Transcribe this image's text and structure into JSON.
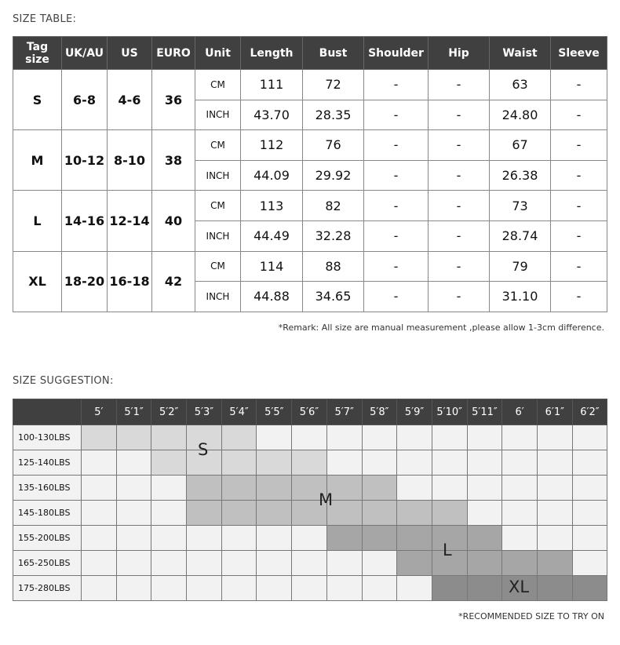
{
  "size_table": {
    "title": "SIZE TABLE:",
    "headers": [
      "Tag size",
      "UK/AU",
      "US",
      "EURO",
      "Unit",
      "Length",
      "Bust",
      "Shoulder",
      "Hip",
      "Waist",
      "Sleeve"
    ],
    "rows": [
      {
        "tag": "S",
        "uk": "6-8",
        "us": "4-6",
        "euro": "36",
        "cm": [
          "CM",
          "111",
          "72",
          "-",
          "-",
          "63",
          "-"
        ],
        "inch": [
          "INCH",
          "43.70",
          "28.35",
          "-",
          "-",
          "24.80",
          "-"
        ]
      },
      {
        "tag": "M",
        "uk": "10-12",
        "us": "8-10",
        "euro": "38",
        "cm": [
          "CM",
          "112",
          "76",
          "-",
          "-",
          "67",
          "-"
        ],
        "inch": [
          "INCH",
          "44.09",
          "29.92",
          "-",
          "-",
          "26.38",
          "-"
        ]
      },
      {
        "tag": "L",
        "uk": "14-16",
        "us": "12-14",
        "euro": "40",
        "cm": [
          "CM",
          "113",
          "82",
          "-",
          "-",
          "73",
          "-"
        ],
        "inch": [
          "INCH",
          "44.49",
          "32.28",
          "-",
          "-",
          "28.74",
          "-"
        ]
      },
      {
        "tag": "XL",
        "uk": "18-20",
        "us": "16-18",
        "euro": "42",
        "cm": [
          "CM",
          "114",
          "88",
          "-",
          "-",
          "79",
          "-"
        ],
        "inch": [
          "INCH",
          "44.88",
          "34.65",
          "-",
          "-",
          "31.10",
          "-"
        ]
      }
    ],
    "remark": "*Remark: All size are manual measurement ,please allow 1-3cm difference."
  },
  "size_suggestion": {
    "title": "SIZE SUGGESTION:",
    "heights": [
      "5′",
      "5′1″",
      "5′2″",
      "5′3″",
      "5′4″",
      "5′5″",
      "5′6″",
      "5′7″",
      "5′8″",
      "5′9″",
      "5′10″",
      "5′11″",
      "6′",
      "6′1″",
      "6′2″"
    ],
    "weights": [
      "100-130LBS",
      "125-140LBS",
      "135-160LBS",
      "145-180LBS",
      "155-200LBS",
      "165-250LBS",
      "175-280LBS"
    ],
    "zones": [
      {
        "size": "S",
        "color": "#d9d9d9",
        "cells": [
          [
            0,
            0,
            4
          ],
          [
            1,
            2,
            6
          ]
        ]
      },
      {
        "size": "M",
        "color": "#c0c0c0",
        "cells": [
          [
            2,
            3,
            8
          ],
          [
            3,
            3,
            10
          ]
        ]
      },
      {
        "size": "L",
        "color": "#a6a6a6",
        "cells": [
          [
            4,
            7,
            11
          ],
          [
            5,
            9,
            13
          ]
        ]
      },
      {
        "size": "XL",
        "color": "#8c8c8c",
        "cells": [
          [
            6,
            10,
            14
          ]
        ]
      }
    ],
    "note": "*RECOMMENDED SIZE TO TRY ON"
  }
}
